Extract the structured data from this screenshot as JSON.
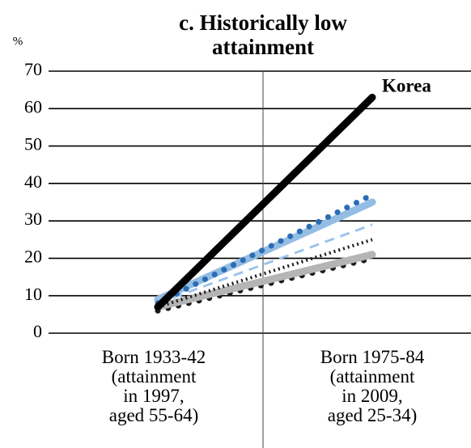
{
  "chart_data": {
    "type": "line",
    "title": "c. Historically low\nattainment",
    "y_unit": "%",
    "categories": [
      "Born 1933-42\n(attainment\nin 1997,\naged 55-64)",
      "Born 1975-84\n(attainment\nin 2009,\naged 25-34)"
    ],
    "ylim": [
      0,
      70
    ],
    "yticks": [
      0,
      10,
      20,
      30,
      40,
      50,
      60,
      70
    ],
    "grid": true,
    "series": [
      {
        "color": "#1a1a1a",
        "style": "dotted",
        "values": [
          6,
          20
        ]
      },
      {
        "color": "#b5b5b5",
        "style": "solid",
        "values": [
          7,
          21
        ]
      },
      {
        "color": "#1a1a1a",
        "style": "dotted-thin",
        "values": [
          7,
          25
        ]
      },
      {
        "color": "#9ec4ea",
        "style": "dashed",
        "values": [
          8,
          29
        ]
      },
      {
        "color": "#94bde4",
        "style": "solid",
        "values": [
          9,
          35
        ]
      },
      {
        "color": "#2a6db5",
        "style": "dotted",
        "values": [
          8,
          37
        ]
      },
      {
        "name": "Korea",
        "color": "#000000",
        "style": "solid",
        "values": [
          7,
          63
        ]
      }
    ]
  }
}
